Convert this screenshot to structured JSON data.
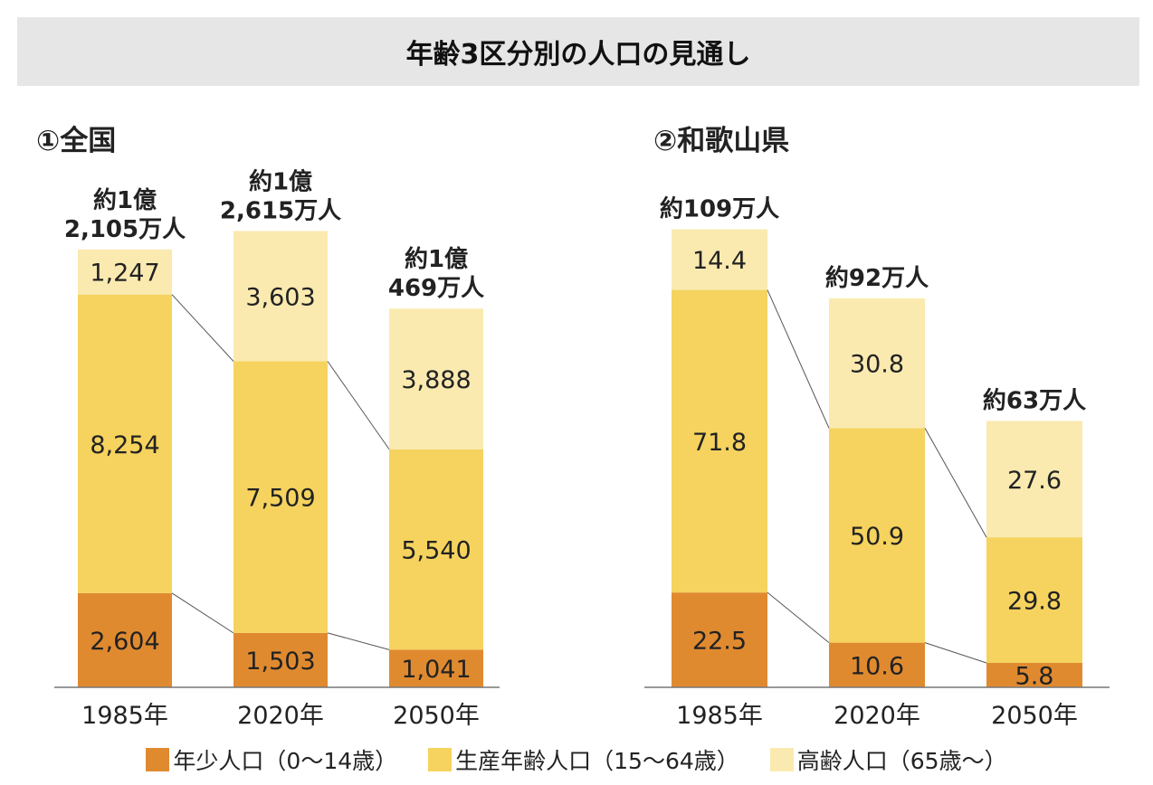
{
  "title": "年齢3区分別の人口の見通し",
  "colors": {
    "young": "#e08a30",
    "working": "#f5d35e",
    "elderly": "#faeab0",
    "line": "#555555",
    "axis": "#777777"
  },
  "legend": [
    {
      "key": "young",
      "label": "年少人口（0～14歳）"
    },
    {
      "key": "working",
      "label": "生産年齢人口（15～64歳）"
    },
    {
      "key": "elderly",
      "label": "高齢人口（65歳～）"
    }
  ],
  "chart_data": [
    {
      "type": "bar",
      "stacked": true,
      "title": "①全国",
      "unit": "万人",
      "categories": [
        "1985年",
        "2020年",
        "2050年"
      ],
      "series": [
        {
          "name": "年少人口（0～14歳）",
          "key": "young",
          "values": [
            2604,
            1503,
            1041
          ],
          "labels": [
            "2,604",
            "1,503",
            "1,041"
          ]
        },
        {
          "name": "生産年齢人口（15～64歳）",
          "key": "working",
          "values": [
            8254,
            7509,
            5540
          ],
          "labels": [
            "8,254",
            "7,509",
            "5,540"
          ]
        },
        {
          "name": "高齢人口（65歳～）",
          "key": "elderly",
          "values": [
            1247,
            3603,
            3888
          ],
          "labels": [
            "1,247",
            "3,603",
            "3,888"
          ]
        }
      ],
      "totals": [
        [
          "約1億",
          "2,105万人"
        ],
        [
          "約1億",
          "2,615万人"
        ],
        [
          "約1億",
          "469万人"
        ]
      ]
    },
    {
      "type": "bar",
      "stacked": true,
      "title": "②和歌山県",
      "unit": "万人",
      "categories": [
        "1985年",
        "2020年",
        "2050年"
      ],
      "series": [
        {
          "name": "年少人口（0～14歳）",
          "key": "young",
          "values": [
            22.5,
            10.6,
            5.8
          ],
          "labels": [
            "22.5",
            "10.6",
            "5.8"
          ]
        },
        {
          "name": "生産年齢人口（15～64歳）",
          "key": "working",
          "values": [
            71.8,
            50.9,
            29.8
          ],
          "labels": [
            "71.8",
            "50.9",
            "29.8"
          ]
        },
        {
          "name": "高齢人口（65歳～）",
          "key": "elderly",
          "values": [
            14.4,
            30.8,
            27.6
          ],
          "labels": [
            "14.4",
            "30.8",
            "27.6"
          ]
        }
      ],
      "totals": [
        [
          "約109万人"
        ],
        [
          "約92万人"
        ],
        [
          "約63万人"
        ]
      ]
    }
  ]
}
